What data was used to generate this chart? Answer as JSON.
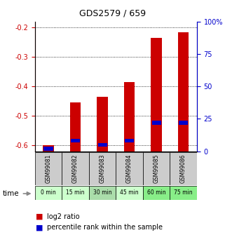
{
  "title": "GDS2579 / 659",
  "samples": [
    "GSM99081",
    "GSM99082",
    "GSM99083",
    "GSM99084",
    "GSM99085",
    "GSM99086"
  ],
  "time_labels": [
    "0 min",
    "15 min",
    "30 min",
    "45 min",
    "60 min",
    "75 min"
  ],
  "log2_ratio": [
    -0.6,
    -0.455,
    -0.435,
    -0.385,
    -0.235,
    -0.215
  ],
  "percentile_rank": [
    2,
    8,
    5,
    8,
    22,
    22
  ],
  "ylim_left": [
    -0.62,
    -0.18
  ],
  "ylim_right": [
    0,
    100
  ],
  "yticks_left": [
    -0.6,
    -0.5,
    -0.4,
    -0.3,
    -0.2
  ],
  "yticks_right": [
    0,
    25,
    50,
    75,
    100
  ],
  "bar_color": "#cc0000",
  "percentile_color": "#0000cc",
  "time_colors": [
    "#ccffcc",
    "#ccffcc",
    "#aaddaa",
    "#ccffcc",
    "#88ee88",
    "#88ee88"
  ],
  "sample_bg_color": "#cccccc",
  "plot_bg_color": "#ffffff",
  "legend_red_label": "log2 ratio",
  "legend_blue_label": "percentile rank within the sample",
  "left_axis_color": "#cc0000",
  "right_axis_color": "#0000cc",
  "bar_width": 0.4
}
